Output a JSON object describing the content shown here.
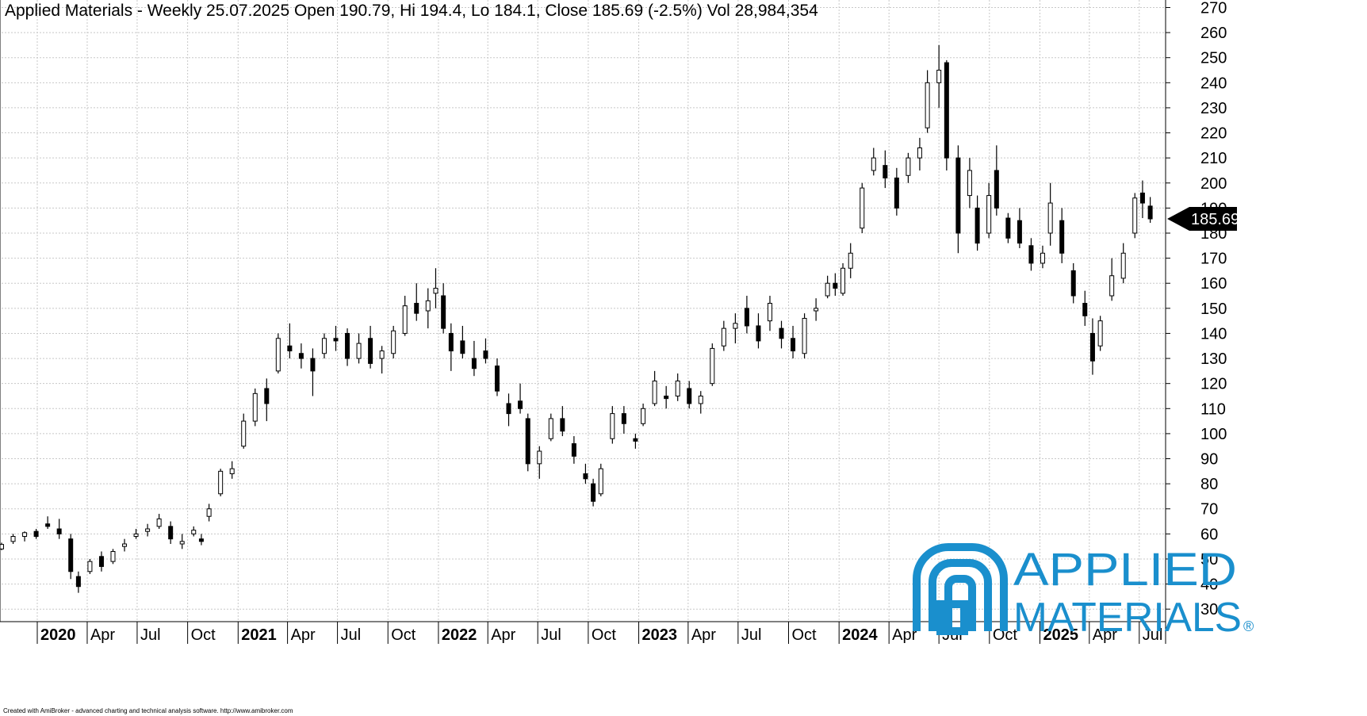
{
  "header": {
    "title": "Applied Materials - Weekly 25.07.2025 Open 190.79, Hi 194.4, Lo 184.1, Close 185.69 (-2.5%) Vol 28,984,354"
  },
  "footer": {
    "text": "Created with AmiBroker - advanced charting and technical analysis software. http://www.amibroker.com"
  },
  "logo": {
    "line1": "APPLIED",
    "line2": "MATERIALS",
    "registered": "®",
    "color": "#1a8fcd"
  },
  "chart_data": {
    "type": "candlestick",
    "title": "Applied Materials - Weekly 25.07.2025 Open 190.79, Hi 194.4, Lo 184.1, Close 185.69 (-2.5%) Vol 28,984,354",
    "ylim": [
      25,
      273
    ],
    "xlim": [
      "2019-10-28",
      "2025-08-18"
    ],
    "y_ticks": [
      30,
      40,
      50,
      60,
      70,
      80,
      90,
      100,
      110,
      120,
      130,
      140,
      150,
      160,
      170,
      180,
      190,
      200,
      210,
      220,
      230,
      240,
      250,
      260,
      270
    ],
    "x_ticks": [
      {
        "label": "2020",
        "date": "2020-01-01",
        "bold": true
      },
      {
        "label": "Apr",
        "date": "2020-04-01"
      },
      {
        "label": "Jul",
        "date": "2020-07-01"
      },
      {
        "label": "Oct",
        "date": "2020-10-01"
      },
      {
        "label": "2021",
        "date": "2021-01-01",
        "bold": true
      },
      {
        "label": "Apr",
        "date": "2021-04-01"
      },
      {
        "label": "Jul",
        "date": "2021-07-01"
      },
      {
        "label": "Oct",
        "date": "2021-10-01"
      },
      {
        "label": "2022",
        "date": "2022-01-01",
        "bold": true
      },
      {
        "label": "Apr",
        "date": "2022-04-01"
      },
      {
        "label": "Jul",
        "date": "2022-07-01"
      },
      {
        "label": "Oct",
        "date": "2022-10-01"
      },
      {
        "label": "2023",
        "date": "2023-01-01",
        "bold": true
      },
      {
        "label": "Apr",
        "date": "2023-04-01"
      },
      {
        "label": "Jul",
        "date": "2023-07-01"
      },
      {
        "label": "Oct",
        "date": "2023-10-01"
      },
      {
        "label": "2024",
        "date": "2024-01-01",
        "bold": true
      },
      {
        "label": "Apr",
        "date": "2024-04-01"
      },
      {
        "label": "Jul",
        "date": "2024-07-01"
      },
      {
        "label": "Oct",
        "date": "2024-10-01"
      },
      {
        "label": "2025",
        "date": "2025-01-01",
        "bold": true
      },
      {
        "label": "Apr",
        "date": "2025-04-01"
      },
      {
        "label": "Jul",
        "date": "2025-07-01"
      }
    ],
    "last_price": {
      "label": "185.69",
      "value": 185.69
    },
    "grid": true,
    "series": [
      {
        "interval": "weekly",
        "up_color": "#ffffff",
        "down_color": "#000000",
        "data": [
          {
            "date": "2019-10-28",
            "o": 54.0,
            "h": 56.5,
            "l": 53.5,
            "c": 55.8
          },
          {
            "date": "2019-11-18",
            "o": 57.0,
            "h": 60.0,
            "l": 56.0,
            "c": 59.0
          },
          {
            "date": "2019-12-09",
            "o": 59.0,
            "h": 61.0,
            "l": 57.0,
            "c": 60.5
          },
          {
            "date": "2019-12-30",
            "o": 61.0,
            "h": 62.0,
            "l": 58.0,
            "c": 59.0
          },
          {
            "date": "2020-01-20",
            "o": 64.0,
            "h": 67.0,
            "l": 62.0,
            "c": 63.0
          },
          {
            "date": "2020-02-10",
            "o": 62.0,
            "h": 66.0,
            "l": 58.0,
            "c": 60.0
          },
          {
            "date": "2020-03-02",
            "o": 58.0,
            "h": 60.0,
            "l": 42.0,
            "c": 45.0
          },
          {
            "date": "2020-03-16",
            "o": 43.0,
            "h": 45.0,
            "l": 36.5,
            "c": 39.0
          },
          {
            "date": "2020-04-06",
            "o": 45.0,
            "h": 50.0,
            "l": 44.0,
            "c": 49.0
          },
          {
            "date": "2020-04-27",
            "o": 51.0,
            "h": 53.0,
            "l": 45.0,
            "c": 47.0
          },
          {
            "date": "2020-05-18",
            "o": 49.0,
            "h": 54.0,
            "l": 48.0,
            "c": 53.0
          },
          {
            "date": "2020-06-08",
            "o": 55.0,
            "h": 58.0,
            "l": 53.0,
            "c": 56.0
          },
          {
            "date": "2020-06-29",
            "o": 59.0,
            "h": 62.0,
            "l": 58.0,
            "c": 60.0
          },
          {
            "date": "2020-07-20",
            "o": 61.0,
            "h": 64.0,
            "l": 59.0,
            "c": 62.0
          },
          {
            "date": "2020-08-10",
            "o": 63.0,
            "h": 68.0,
            "l": 62.0,
            "c": 66.0
          },
          {
            "date": "2020-08-31",
            "o": 63.0,
            "h": 65.0,
            "l": 56.0,
            "c": 58.0
          },
          {
            "date": "2020-09-21",
            "o": 56.0,
            "h": 60.0,
            "l": 54.0,
            "c": 57.0
          },
          {
            "date": "2020-10-12",
            "o": 60.0,
            "h": 63.0,
            "l": 59.0,
            "c": 61.5
          },
          {
            "date": "2020-10-26",
            "o": 58.0,
            "h": 60.0,
            "l": 55.5,
            "c": 57.0
          },
          {
            "date": "2020-11-09",
            "o": 67.0,
            "h": 72.0,
            "l": 65.0,
            "c": 70.0
          },
          {
            "date": "2020-11-30",
            "o": 76.0,
            "h": 86.0,
            "l": 75.0,
            "c": 85.0
          },
          {
            "date": "2020-12-21",
            "o": 84.0,
            "h": 89.0,
            "l": 82.0,
            "c": 86.0
          },
          {
            "date": "2021-01-11",
            "o": 95.0,
            "h": 108.0,
            "l": 94.0,
            "c": 105.0
          },
          {
            "date": "2021-02-01",
            "o": 105.0,
            "h": 118.0,
            "l": 103.0,
            "c": 116.0
          },
          {
            "date": "2021-02-22",
            "o": 118.0,
            "h": 122.0,
            "l": 105.0,
            "c": 112.0
          },
          {
            "date": "2021-03-15",
            "o": 125.0,
            "h": 140.0,
            "l": 124.0,
            "c": 138.0
          },
          {
            "date": "2021-04-05",
            "o": 135.0,
            "h": 144.0,
            "l": 130.0,
            "c": 133.0
          },
          {
            "date": "2021-04-26",
            "o": 132.0,
            "h": 136.0,
            "l": 126.0,
            "c": 130.0
          },
          {
            "date": "2021-05-17",
            "o": 130.0,
            "h": 134.0,
            "l": 115.0,
            "c": 125.0
          },
          {
            "date": "2021-06-07",
            "o": 132.0,
            "h": 140.0,
            "l": 130.0,
            "c": 138.0
          },
          {
            "date": "2021-06-28",
            "o": 138.0,
            "h": 143.0,
            "l": 133.0,
            "c": 137.0
          },
          {
            "date": "2021-07-19",
            "o": 140.0,
            "h": 142.0,
            "l": 127.0,
            "c": 130.0
          },
          {
            "date": "2021-08-09",
            "o": 130.0,
            "h": 140.0,
            "l": 128.0,
            "c": 136.0
          },
          {
            "date": "2021-08-30",
            "o": 138.0,
            "h": 143.0,
            "l": 126.0,
            "c": 128.0
          },
          {
            "date": "2021-09-20",
            "o": 130.0,
            "h": 135.0,
            "l": 124.0,
            "c": 133.0
          },
          {
            "date": "2021-10-11",
            "o": 132.0,
            "h": 143.0,
            "l": 130.0,
            "c": 141.0
          },
          {
            "date": "2021-11-01",
            "o": 140.0,
            "h": 155.0,
            "l": 139.0,
            "c": 151.0
          },
          {
            "date": "2021-11-22",
            "o": 152.0,
            "h": 160.0,
            "l": 145.0,
            "c": 148.0
          },
          {
            "date": "2021-12-13",
            "o": 149.0,
            "h": 158.0,
            "l": 142.0,
            "c": 153.0
          },
          {
            "date": "2021-12-27",
            "o": 156.0,
            "h": 166.0,
            "l": 150.0,
            "c": 158.0
          },
          {
            "date": "2022-01-10",
            "o": 155.0,
            "h": 160.0,
            "l": 140.0,
            "c": 142.0
          },
          {
            "date": "2022-01-24",
            "o": 140.0,
            "h": 144.0,
            "l": 125.0,
            "c": 133.0
          },
          {
            "date": "2022-02-14",
            "o": 137.0,
            "h": 143.0,
            "l": 130.0,
            "c": 132.0
          },
          {
            "date": "2022-03-07",
            "o": 130.0,
            "h": 137.0,
            "l": 123.0,
            "c": 126.0
          },
          {
            "date": "2022-03-28",
            "o": 133.0,
            "h": 138.0,
            "l": 128.0,
            "c": 130.0
          },
          {
            "date": "2022-04-18",
            "o": 127.0,
            "h": 130.0,
            "l": 115.0,
            "c": 117.0
          },
          {
            "date": "2022-05-09",
            "o": 112.0,
            "h": 116.0,
            "l": 103.0,
            "c": 108.0
          },
          {
            "date": "2022-05-30",
            "o": 113.0,
            "h": 120.0,
            "l": 108.0,
            "c": 110.0
          },
          {
            "date": "2022-06-13",
            "o": 106.0,
            "h": 108.0,
            "l": 85.0,
            "c": 88.0
          },
          {
            "date": "2022-07-04",
            "o": 88.0,
            "h": 95.0,
            "l": 82.0,
            "c": 93.0
          },
          {
            "date": "2022-07-25",
            "o": 98.0,
            "h": 108.0,
            "l": 97.0,
            "c": 106.0
          },
          {
            "date": "2022-08-15",
            "o": 106.0,
            "h": 111.0,
            "l": 99.0,
            "c": 101.0
          },
          {
            "date": "2022-09-05",
            "o": 96.0,
            "h": 99.0,
            "l": 88.0,
            "c": 91.0
          },
          {
            "date": "2022-09-26",
            "o": 84.0,
            "h": 88.0,
            "l": 80.0,
            "c": 82.0
          },
          {
            "date": "2022-10-10",
            "o": 80.0,
            "h": 82.0,
            "l": 71.0,
            "c": 73.0
          },
          {
            "date": "2022-10-24",
            "o": 76.0,
            "h": 88.0,
            "l": 75.0,
            "c": 86.0
          },
          {
            "date": "2022-11-14",
            "o": 98.0,
            "h": 111.0,
            "l": 96.0,
            "c": 108.0
          },
          {
            "date": "2022-12-05",
            "o": 108.0,
            "h": 111.0,
            "l": 100.0,
            "c": 104.0
          },
          {
            "date": "2022-12-26",
            "o": 98.0,
            "h": 100.0,
            "l": 94.0,
            "c": 97.0
          },
          {
            "date": "2023-01-09",
            "o": 104.0,
            "h": 112.0,
            "l": 103.0,
            "c": 110.0
          },
          {
            "date": "2023-01-30",
            "o": 112.0,
            "h": 125.0,
            "l": 111.0,
            "c": 121.0
          },
          {
            "date": "2023-02-20",
            "o": 115.0,
            "h": 119.0,
            "l": 110.0,
            "c": 114.0
          },
          {
            "date": "2023-03-13",
            "o": 115.0,
            "h": 124.0,
            "l": 113.0,
            "c": 121.0
          },
          {
            "date": "2023-04-03",
            "o": 118.0,
            "h": 121.0,
            "l": 110.0,
            "c": 112.0
          },
          {
            "date": "2023-04-24",
            "o": 112.0,
            "h": 117.0,
            "l": 108.0,
            "c": 115.0
          },
          {
            "date": "2023-05-15",
            "o": 120.0,
            "h": 136.0,
            "l": 119.0,
            "c": 134.0
          },
          {
            "date": "2023-06-05",
            "o": 135.0,
            "h": 145.0,
            "l": 133.0,
            "c": 142.0
          },
          {
            "date": "2023-06-26",
            "o": 142.0,
            "h": 148.0,
            "l": 136.0,
            "c": 144.0
          },
          {
            "date": "2023-07-17",
            "o": 150.0,
            "h": 155.0,
            "l": 140.0,
            "c": 143.0
          },
          {
            "date": "2023-08-07",
            "o": 143.0,
            "h": 148.0,
            "l": 134.0,
            "c": 137.0
          },
          {
            "date": "2023-08-28",
            "o": 145.0,
            "h": 155.0,
            "l": 141.0,
            "c": 152.0
          },
          {
            "date": "2023-09-18",
            "o": 142.0,
            "h": 145.0,
            "l": 134.0,
            "c": 138.0
          },
          {
            "date": "2023-10-09",
            "o": 138.0,
            "h": 143.0,
            "l": 130.0,
            "c": 133.0
          },
          {
            "date": "2023-10-30",
            "o": 132.0,
            "h": 148.0,
            "l": 130.0,
            "c": 146.0
          },
          {
            "date": "2023-11-20",
            "o": 149.0,
            "h": 154.0,
            "l": 145.0,
            "c": 150.0
          },
          {
            "date": "2023-12-11",
            "o": 155.0,
            "h": 163.0,
            "l": 154.0,
            "c": 160.0
          },
          {
            "date": "2023-12-25",
            "o": 160.0,
            "h": 164.0,
            "l": 155.0,
            "c": 158.0
          },
          {
            "date": "2024-01-08",
            "o": 156.0,
            "h": 168.0,
            "l": 155.0,
            "c": 166.0
          },
          {
            "date": "2024-01-22",
            "o": 166.0,
            "h": 176.0,
            "l": 162.0,
            "c": 172.0
          },
          {
            "date": "2024-02-12",
            "o": 182.0,
            "h": 200.0,
            "l": 180.0,
            "c": 198.0
          },
          {
            "date": "2024-03-04",
            "o": 205.0,
            "h": 214.0,
            "l": 203.0,
            "c": 210.0
          },
          {
            "date": "2024-03-25",
            "o": 207.0,
            "h": 213.0,
            "l": 198.0,
            "c": 202.0
          },
          {
            "date": "2024-04-15",
            "o": 202.0,
            "h": 206.0,
            "l": 187.0,
            "c": 190.0
          },
          {
            "date": "2024-05-06",
            "o": 203.0,
            "h": 212.0,
            "l": 200.0,
            "c": 210.0
          },
          {
            "date": "2024-05-27",
            "o": 210.0,
            "h": 218.0,
            "l": 205.0,
            "c": 214.0
          },
          {
            "date": "2024-06-10",
            "o": 222.0,
            "h": 245.0,
            "l": 220.0,
            "c": 240.0
          },
          {
            "date": "2024-07-01",
            "o": 240.0,
            "h": 255.0,
            "l": 230.0,
            "c": 245.0
          },
          {
            "date": "2024-07-15",
            "o": 248.0,
            "h": 249.0,
            "l": 205.0,
            "c": 210.0
          },
          {
            "date": "2024-08-05",
            "o": 210.0,
            "h": 215.0,
            "l": 172.0,
            "c": 180.0
          },
          {
            "date": "2024-08-26",
            "o": 195.0,
            "h": 210.0,
            "l": 190.0,
            "c": 205.0
          },
          {
            "date": "2024-09-09",
            "o": 190.0,
            "h": 195.0,
            "l": 173.0,
            "c": 176.0
          },
          {
            "date": "2024-09-30",
            "o": 180.0,
            "h": 200.0,
            "l": 178.0,
            "c": 195.0
          },
          {
            "date": "2024-10-14",
            "o": 205.0,
            "h": 215.0,
            "l": 187.0,
            "c": 190.0
          },
          {
            "date": "2024-11-04",
            "o": 186.0,
            "h": 188.0,
            "l": 176.0,
            "c": 178.0
          },
          {
            "date": "2024-11-25",
            "o": 185.0,
            "h": 190.0,
            "l": 174.0,
            "c": 176.0
          },
          {
            "date": "2024-12-16",
            "o": 175.0,
            "h": 178.0,
            "l": 165.0,
            "c": 168.0
          },
          {
            "date": "2025-01-06",
            "o": 168.0,
            "h": 175.0,
            "l": 166.0,
            "c": 172.0
          },
          {
            "date": "2025-01-20",
            "o": 180.0,
            "h": 200.0,
            "l": 175.0,
            "c": 192.0
          },
          {
            "date": "2025-02-10",
            "o": 185.0,
            "h": 190.0,
            "l": 168.0,
            "c": 172.0
          },
          {
            "date": "2025-03-03",
            "o": 165.0,
            "h": 168.0,
            "l": 152.0,
            "c": 155.0
          },
          {
            "date": "2025-03-24",
            "o": 152.0,
            "h": 157.0,
            "l": 143.0,
            "c": 147.0
          },
          {
            "date": "2025-04-07",
            "o": 140.0,
            "h": 146.0,
            "l": 123.5,
            "c": 129.0
          },
          {
            "date": "2025-04-21",
            "o": 135.0,
            "h": 147.0,
            "l": 133.0,
            "c": 145.0
          },
          {
            "date": "2025-05-12",
            "o": 155.0,
            "h": 170.0,
            "l": 153.0,
            "c": 163.0
          },
          {
            "date": "2025-06-02",
            "o": 162.0,
            "h": 176.0,
            "l": 160.0,
            "c": 172.0
          },
          {
            "date": "2025-06-23",
            "o": 180.0,
            "h": 196.0,
            "l": 178.0,
            "c": 194.0
          },
          {
            "date": "2025-07-07",
            "o": 196.0,
            "h": 201.0,
            "l": 186.0,
            "c": 192.0
          },
          {
            "date": "2025-07-21",
            "o": 190.79,
            "h": 194.4,
            "l": 184.1,
            "c": 185.69
          }
        ]
      }
    ]
  }
}
